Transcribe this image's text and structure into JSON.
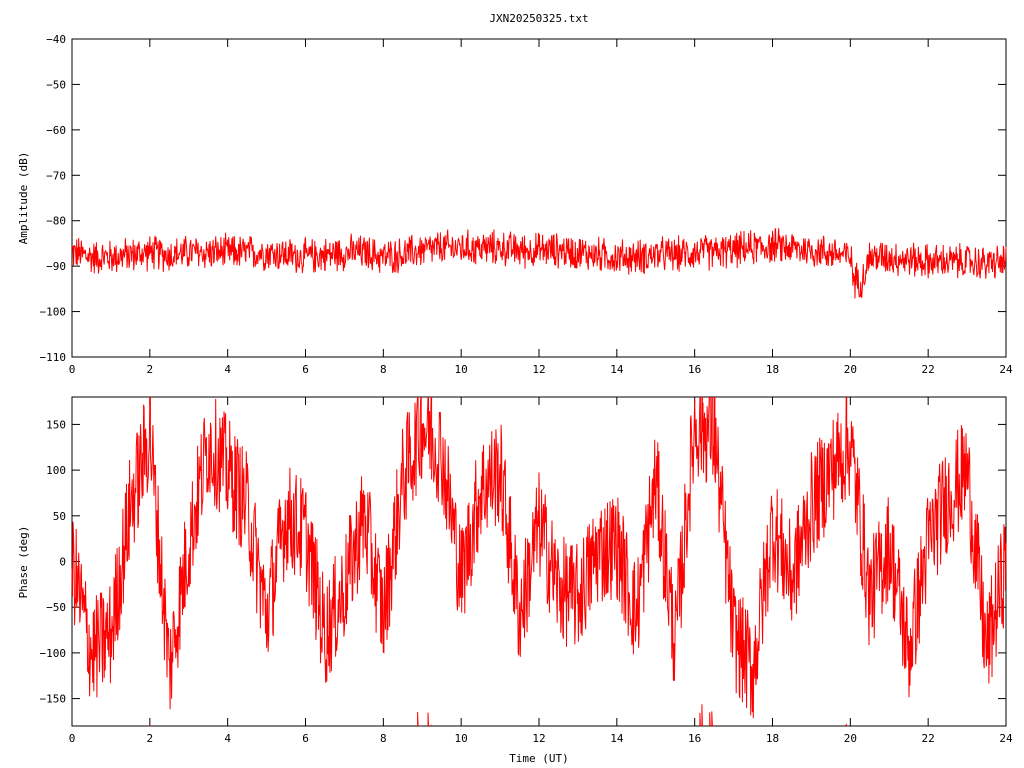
{
  "chart_data": [
    {
      "type": "line",
      "title": "JXN20250325.txt",
      "xlabel": "",
      "ylabel": "Amplitude (dB)",
      "xlim": [
        0,
        24
      ],
      "ylim": [
        -110,
        -40
      ],
      "xticks": [
        "0",
        "2",
        "4",
        "6",
        "8",
        "10",
        "12",
        "14",
        "16",
        "18",
        "20",
        "22",
        "24"
      ],
      "yticks": [
        "-40",
        "-50",
        "-60",
        "-70",
        "-80",
        "-90",
        "-100",
        "-110"
      ],
      "grid": false,
      "legend": "none",
      "series": [
        {
          "color": "#ff0000",
          "x": [
            0,
            0.5,
            1,
            1.5,
            2,
            2.5,
            3,
            3.5,
            4,
            4.5,
            5,
            5.5,
            6,
            6.5,
            7,
            7.5,
            8,
            8.5,
            9,
            9.5,
            10,
            10.5,
            11,
            11.5,
            12,
            12.5,
            13,
            13.5,
            14,
            14.5,
            15,
            15.5,
            16,
            16.5,
            17,
            17.5,
            18,
            18.5,
            19,
            19.5,
            20,
            20.1,
            20.3,
            20.5,
            21,
            21.5,
            22,
            22.5,
            23,
            23.5,
            24
          ],
          "y": [
            -87,
            -88,
            -88,
            -87.5,
            -87,
            -87.5,
            -87,
            -87,
            -87,
            -87,
            -87,
            -87.5,
            -88,
            -87.5,
            -87,
            -87,
            -88,
            -87.5,
            -86.5,
            -86,
            -86,
            -86,
            -86,
            -86.5,
            -86.5,
            -86.5,
            -87,
            -87.5,
            -88,
            -88,
            -87.5,
            -87.5,
            -87,
            -87,
            -86.5,
            -86,
            -85.5,
            -86,
            -86.5,
            -87,
            -88,
            -93,
            -93,
            -88,
            -88,
            -88.5,
            -89,
            -89,
            -89,
            -89.5,
            -89
          ],
          "noise_spread_db": 3.5
        }
      ]
    },
    {
      "type": "line",
      "title": "",
      "xlabel": "Time (UT)",
      "ylabel": "Phase (deg)",
      "xlim": [
        0,
        24
      ],
      "ylim": [
        -180,
        180
      ],
      "xticks": [
        "0",
        "2",
        "4",
        "6",
        "8",
        "10",
        "12",
        "14",
        "16",
        "18",
        "20",
        "22",
        "24"
      ],
      "yticks": [
        "150",
        "100",
        "50",
        "0",
        "-50",
        "-100",
        "-150"
      ],
      "grid": false,
      "legend": "none",
      "series": [
        {
          "color": "#ff0000",
          "x": [
            0,
            0.5,
            1,
            1.5,
            2,
            2.5,
            3,
            3.5,
            4,
            4.5,
            5,
            5.5,
            6,
            6.5,
            7,
            7.5,
            8,
            8.5,
            9,
            9.5,
            10,
            10.5,
            11,
            11.5,
            12,
            12.5,
            13,
            13.5,
            14,
            14.5,
            15,
            15.5,
            16,
            16.5,
            17,
            17.5,
            18,
            18.5,
            19,
            19.5,
            20,
            20.5,
            21,
            21.5,
            22,
            22.5,
            23,
            23.5,
            24
          ],
          "y": [
            0,
            -100,
            -80,
            60,
            140,
            -120,
            20,
            130,
            100,
            60,
            -60,
            50,
            30,
            -80,
            -30,
            50,
            -60,
            90,
            150,
            120,
            -20,
            80,
            100,
            -60,
            40,
            -30,
            -40,
            10,
            20,
            -60,
            90,
            -90,
            150,
            140,
            -80,
            -120,
            40,
            -20,
            60,
            100,
            130,
            -40,
            20,
            -100,
            20,
            70,
            100,
            -100,
            0
          ],
          "wrap_degrees": true,
          "noise_spread_deg": 60
        }
      ]
    }
  ]
}
